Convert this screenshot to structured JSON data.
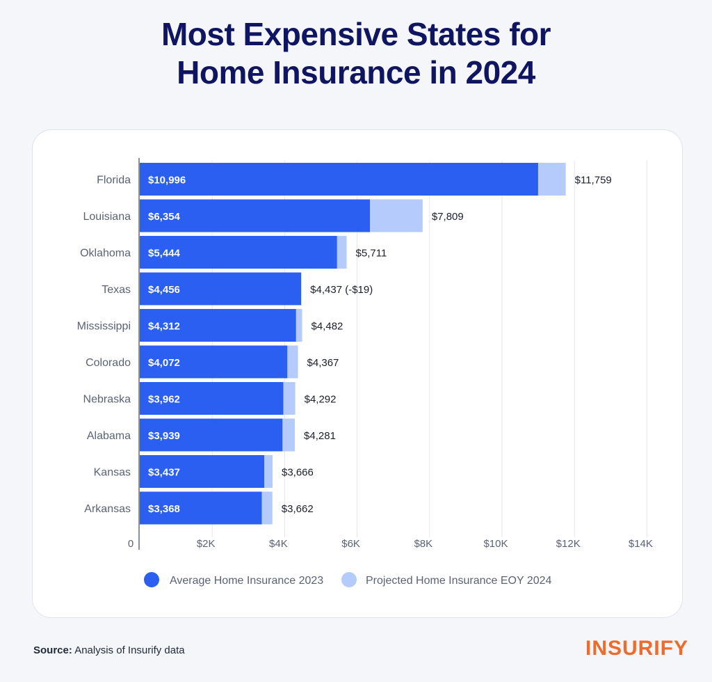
{
  "title_line1": "Most Expensive States for",
  "title_line2": "Home Insurance in 2024",
  "source_label": "Source:",
  "source_text": "Analysis of Insurify data",
  "brand": "INSURIFY",
  "colors": {
    "title": "#0f1560",
    "series_2023": "#2b5ff1",
    "series_2024": "#b4cbfb",
    "grid": "#e3e6ee",
    "axis": "#5b6274",
    "brand": "#ee6a2d"
  },
  "chart_data": {
    "type": "bar",
    "orientation": "horizontal",
    "categories": [
      "Florida",
      "Louisiana",
      "Oklahoma",
      "Texas",
      "Mississippi",
      "Colorado",
      "Nebraska",
      "Alabama",
      "Kansas",
      "Arkansas"
    ],
    "series": [
      {
        "name": "Average Home Insurance 2023",
        "values": [
          10996,
          6354,
          5444,
          4456,
          4312,
          4072,
          3962,
          3939,
          3437,
          3368
        ],
        "labels": [
          "$10,996",
          "$6,354",
          "$5,444",
          "$4,456",
          "$4,312",
          "$4,072",
          "$3,962",
          "$3,939",
          "$3,437",
          "$3,368"
        ]
      },
      {
        "name": "Projected Home Insurance EOY 2024",
        "values": [
          11759,
          7809,
          5711,
          4437,
          4482,
          4367,
          4292,
          4281,
          3666,
          3662
        ],
        "labels": [
          "$11,759",
          "$7,809",
          "$5,711",
          "$4,437 (-$19)",
          "$4,482",
          "$4,367",
          "$4,292",
          "$4,281",
          "$3,666",
          "$3,662"
        ]
      }
    ],
    "xlim": [
      0,
      14000
    ],
    "xticks": [
      0,
      2000,
      4000,
      6000,
      8000,
      10000,
      12000,
      14000
    ],
    "xtick_labels": [
      "0",
      "$2K",
      "$4K",
      "$6K",
      "$8K",
      "$10K",
      "$12K",
      "$14K"
    ],
    "grid": true,
    "legend_position": "bottom"
  }
}
